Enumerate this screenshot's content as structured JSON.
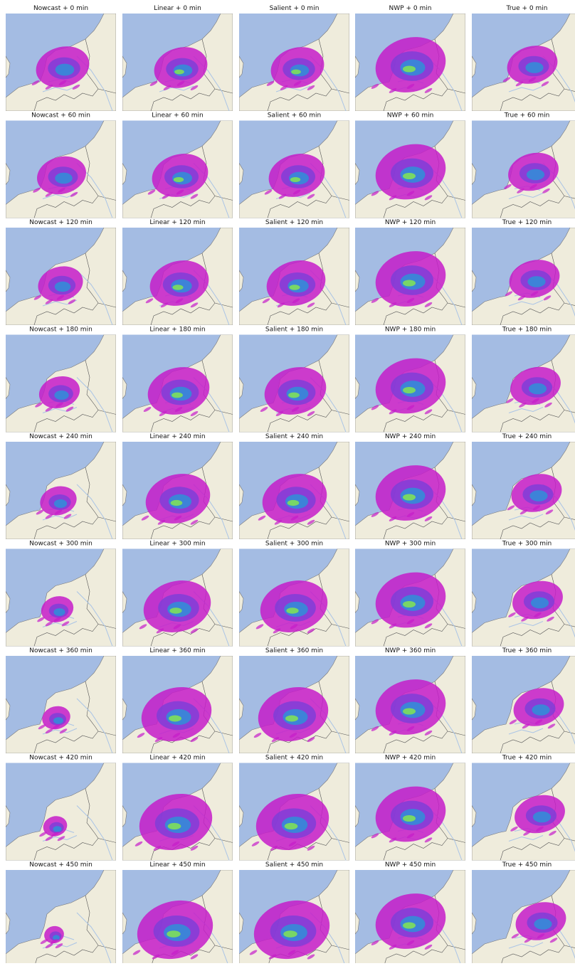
{
  "panels": [
    [
      "Nowcast + 0 min",
      "Linear + 0 min",
      "Salient + 0 min",
      "NWP + 0 min",
      "True + 0 min"
    ],
    [
      "Nowcast + 60 min",
      "Linear + 60 min",
      "Salient + 60 min",
      "NWP + 60 min",
      "True + 60 min"
    ],
    [
      "Nowcast + 120 min",
      "Linear + 120 min",
      "Salient + 120 min",
      "NWP + 120 min",
      "True + 120 min"
    ],
    [
      "Nowcast + 180 min",
      "Linear + 180 min",
      "Salient + 180 min",
      "NWP + 180 min",
      "True + 180 min"
    ],
    [
      "Nowcast + 240 min",
      "Linear + 240 min",
      "Salient + 240 min",
      "NWP + 240 min",
      "True + 240 min"
    ],
    [
      "Nowcast + 300 min",
      "Linear + 300 min",
      "Salient + 300 min",
      "NWP + 300 min",
      "True + 300 min"
    ],
    [
      "Nowcast + 360 min",
      "Linear + 360 min",
      "Salient + 360 min",
      "NWP + 360 min",
      "True + 360 min"
    ],
    [
      "Nowcast + 420 min",
      "Linear + 420 min",
      "Salient + 420 min",
      "NWP + 420 min",
      "True + 420 min"
    ],
    [
      "Nowcast + 450 min",
      "Linear + 450 min",
      "Salient + 450 min",
      "NWP + 450 min",
      "True + 450 min"
    ]
  ]
}
